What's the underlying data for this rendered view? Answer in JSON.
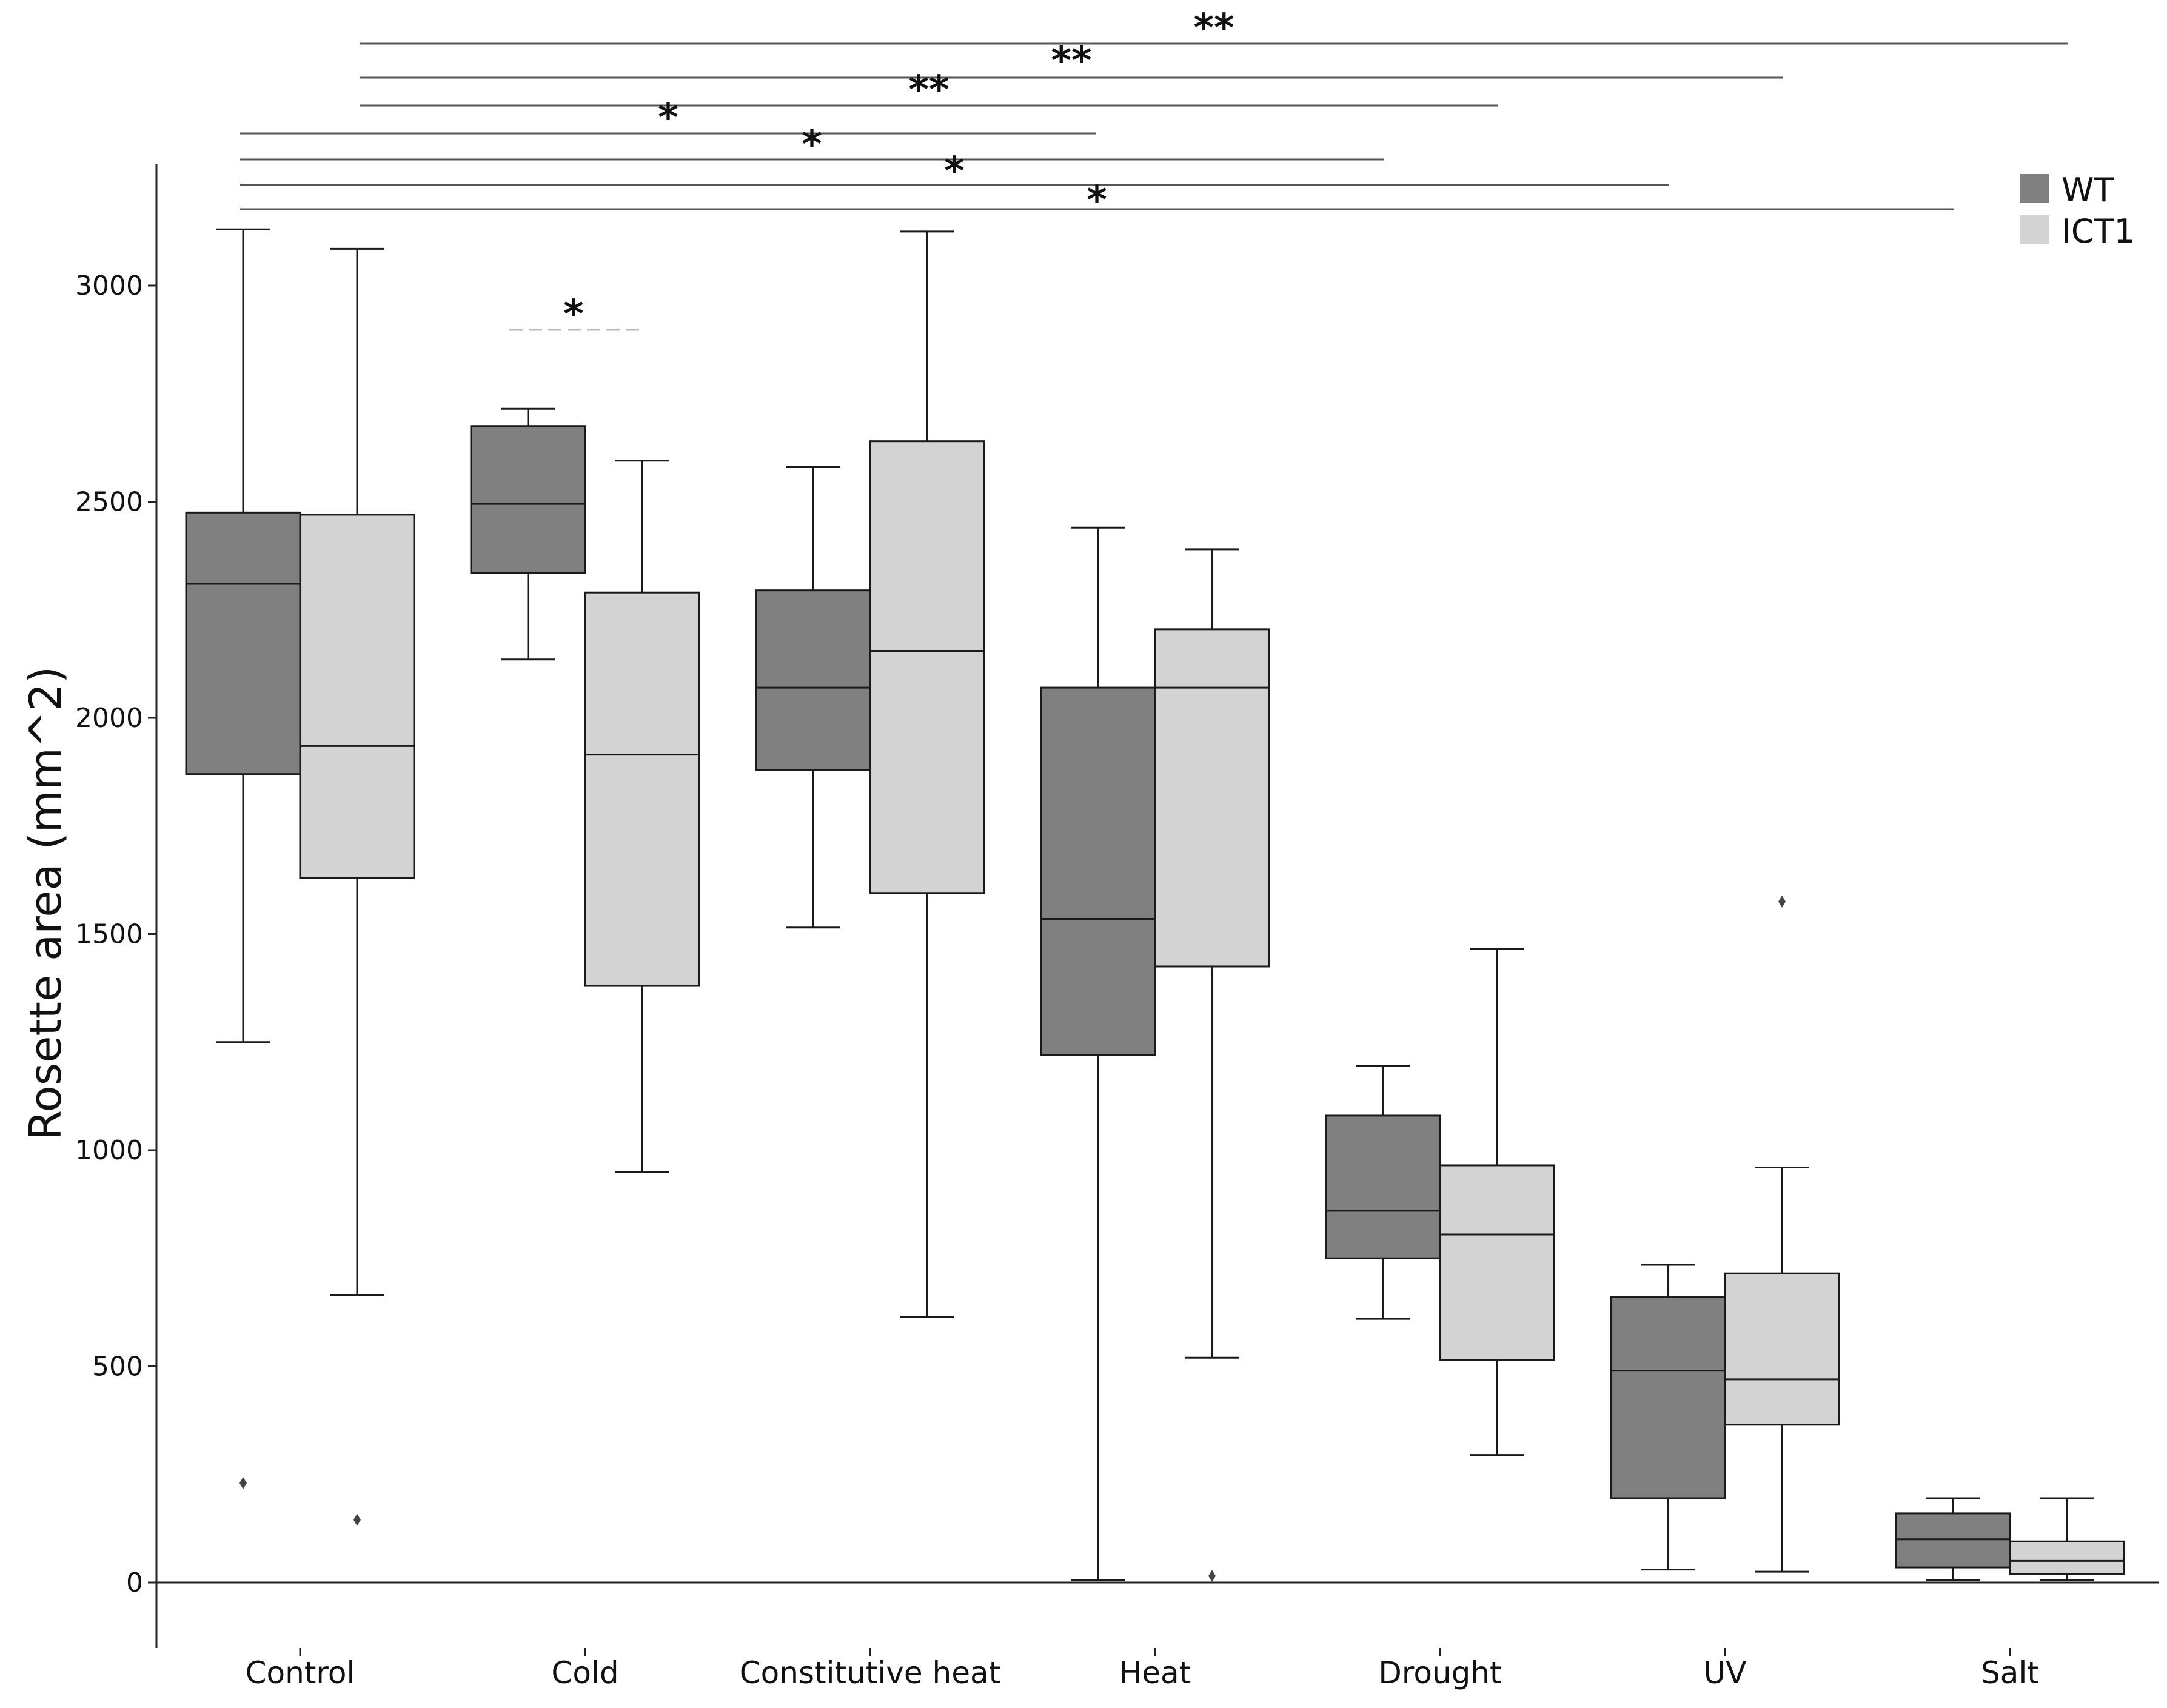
{
  "chart_data": {
    "type": "boxplot",
    "title": "",
    "xlabel": "",
    "ylabel": "Rosette area  (mm^2)",
    "ylim": [
      -150,
      3300
    ],
    "yticks": [
      0,
      500,
      1000,
      1500,
      2000,
      2500,
      3000
    ],
    "categories": [
      "Control",
      "Cold",
      "Constitutive heat",
      "Heat",
      "Drought",
      "UV",
      "Salt"
    ],
    "legend": {
      "position": "top-right",
      "entries": [
        "WT",
        "ICT1"
      ]
    },
    "colors": {
      "WT": "#808080",
      "ICT1": "#d3d3d3",
      "line": "#1a1a1a",
      "bracket": "#555555",
      "dashed": "#bbbbbb"
    },
    "series": [
      {
        "name": "WT",
        "boxes": [
          {
            "category": "Control",
            "whisker_low": 1250,
            "q1": 1870,
            "median": 2310,
            "q3": 2475,
            "whisker_high": 3130,
            "outliers": [
              230
            ]
          },
          {
            "category": "Cold",
            "whisker_low": 2135,
            "q1": 2335,
            "median": 2495,
            "q3": 2675,
            "whisker_high": 2715,
            "outliers": []
          },
          {
            "category": "Constitutive heat",
            "whisker_low": 1515,
            "q1": 1880,
            "median": 2070,
            "q3": 2295,
            "whisker_high": 2580,
            "outliers": []
          },
          {
            "category": "Heat",
            "whisker_low": 5,
            "q1": 1220,
            "median": 1535,
            "q3": 2070,
            "whisker_high": 2440,
            "outliers": []
          },
          {
            "category": "Drought",
            "whisker_low": 610,
            "q1": 750,
            "median": 860,
            "q3": 1080,
            "whisker_high": 1195,
            "outliers": []
          },
          {
            "category": "UV",
            "whisker_low": 30,
            "q1": 195,
            "median": 490,
            "q3": 660,
            "whisker_high": 735,
            "outliers": []
          },
          {
            "category": "Salt",
            "whisker_low": 5,
            "q1": 35,
            "median": 100,
            "q3": 160,
            "whisker_high": 195,
            "outliers": []
          }
        ]
      },
      {
        "name": "ICT1",
        "boxes": [
          {
            "category": "Control",
            "whisker_low": 665,
            "q1": 1630,
            "median": 1935,
            "q3": 2470,
            "whisker_high": 3085,
            "outliers": [
              145
            ]
          },
          {
            "category": "Cold",
            "whisker_low": 950,
            "q1": 1380,
            "median": 1915,
            "q3": 2290,
            "whisker_high": 2595,
            "outliers": []
          },
          {
            "category": "Constitutive heat",
            "whisker_low": 615,
            "q1": 1595,
            "median": 2155,
            "q3": 2640,
            "whisker_high": 3125,
            "outliers": []
          },
          {
            "category": "Heat",
            "whisker_low": 520,
            "q1": 1425,
            "median": 2070,
            "q3": 2205,
            "whisker_high": 2390,
            "outliers": [
              15
            ]
          },
          {
            "category": "Drought",
            "whisker_low": 295,
            "q1": 515,
            "median": 805,
            "q3": 965,
            "whisker_high": 1465,
            "outliers": []
          },
          {
            "category": "UV",
            "whisker_low": 25,
            "q1": 365,
            "median": 470,
            "q3": 715,
            "whisker_high": 960,
            "outliers": [
              1575
            ]
          },
          {
            "category": "Salt",
            "whisker_low": 5,
            "q1": 20,
            "median": 50,
            "q3": 95,
            "whisker_high": 195,
            "outliers": []
          }
        ]
      }
    ],
    "significance": [
      {
        "from": "Control ICT1",
        "to": "Salt ICT1",
        "label": "**"
      },
      {
        "from": "Control ICT1",
        "to": "UV ICT1",
        "label": "**"
      },
      {
        "from": "Control ICT1",
        "to": "Drought ICT1",
        "label": "**"
      },
      {
        "from": "Control WT",
        "to": "Heat WT",
        "label": "*"
      },
      {
        "from": "Control WT",
        "to": "Drought WT",
        "label": "*"
      },
      {
        "from": "Control WT",
        "to": "UV WT",
        "label": "*"
      },
      {
        "from": "Control WT",
        "to": "Salt WT",
        "label": "*"
      },
      {
        "from": "Cold WT",
        "to": "Cold ICT1",
        "label": "*",
        "style": "dashed"
      }
    ]
  }
}
